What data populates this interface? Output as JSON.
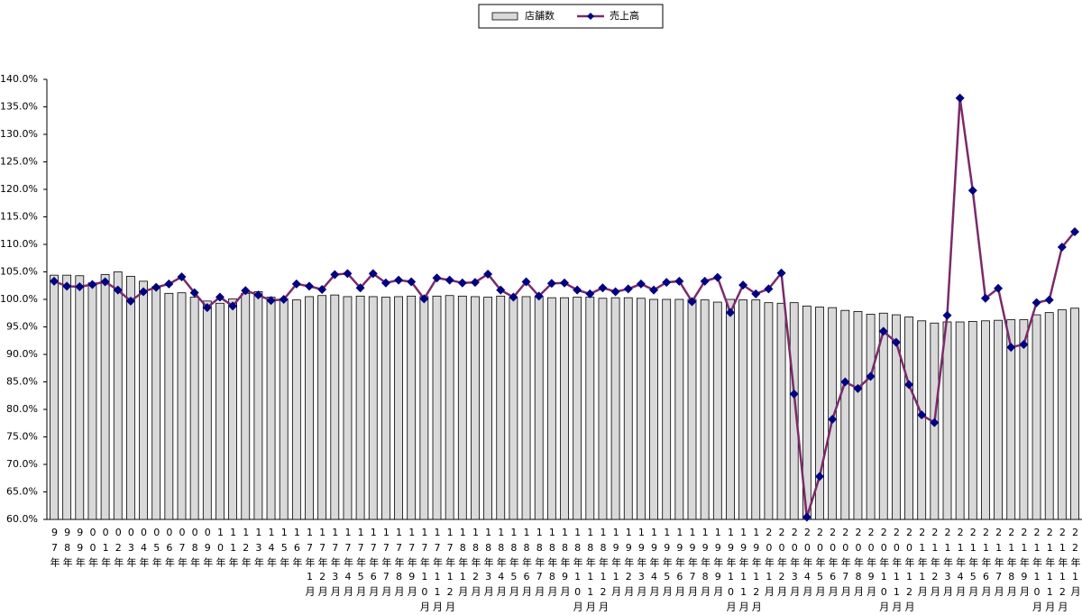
{
  "chart_data": {
    "type": "bar",
    "categories": [
      "97年",
      "98年",
      "99年",
      "00年",
      "01年",
      "02年",
      "03年",
      "04年",
      "05年",
      "06年",
      "07年",
      "08年",
      "09年",
      "10年",
      "11年",
      "12年",
      "13年",
      "14年",
      "15年",
      "16年",
      "17年1月",
      "17年2月",
      "17年3月",
      "17年4月",
      "17年5月",
      "17年6月",
      "17年7月",
      "17年8月",
      "17年9月",
      "17年10月",
      "17年11月",
      "17年12月",
      "18年1月",
      "18年2月",
      "18年3月",
      "18年4月",
      "18年5月",
      "18年6月",
      "18年7月",
      "18年8月",
      "18年9月",
      "18年10月",
      "18年11月",
      "18年12月",
      "19年1月",
      "19年2月",
      "19年3月",
      "19年4月",
      "19年5月",
      "19年6月",
      "19年7月",
      "19年8月",
      "19年9月",
      "19年10月",
      "19年11月",
      "19年12月",
      "20年1月",
      "20年2月",
      "20年3月",
      "20年4月",
      "20年5月",
      "20年6月",
      "20年7月",
      "20年8月",
      "20年9月",
      "20年10月",
      "20年11月",
      "20年12月",
      "21年1月",
      "21年2月",
      "21年3月",
      "21年4月",
      "21年5月",
      "21年6月",
      "21年7月",
      "21年8月",
      "21年9月",
      "21年10月",
      "21年11月",
      "21年12月",
      "22年1月"
    ],
    "series": [
      {
        "name": "店舗数",
        "type": "bar",
        "color": "#d9d9d9",
        "values": [
          104.4,
          104.4,
          104.3,
          103.0,
          104.5,
          105.0,
          104.2,
          103.3,
          102.3,
          101.1,
          101.2,
          100.4,
          99.7,
          99.3,
          100.1,
          101.1,
          101.4,
          100.4,
          100.1,
          99.9,
          100.5,
          100.7,
          100.8,
          100.5,
          100.6,
          100.5,
          100.4,
          100.5,
          100.6,
          100.5,
          100.6,
          100.7,
          100.6,
          100.5,
          100.4,
          100.6,
          100.3,
          100.5,
          100.5,
          100.3,
          100.3,
          100.4,
          100.4,
          100.2,
          100.3,
          100.3,
          100.2,
          100.0,
          100.0,
          100.0,
          100.0,
          99.9,
          99.5,
          100.0,
          99.9,
          99.9,
          99.4,
          99.3,
          99.4,
          98.8,
          98.6,
          98.5,
          98.0,
          97.8,
          97.3,
          97.5,
          97.2,
          96.8,
          96.1,
          95.7,
          95.9,
          95.9,
          96.0,
          96.1,
          96.2,
          96.3,
          96.3,
          97.2,
          97.6,
          98.1,
          98.4
        ]
      },
      {
        "name": "売上高",
        "type": "line",
        "color": "#7b2a6a",
        "marker_color": "#000080",
        "values": [
          103.3,
          102.4,
          102.3,
          102.7,
          103.2,
          101.7,
          99.7,
          101.4,
          102.2,
          102.8,
          104.1,
          101.2,
          98.5,
          100.4,
          98.8,
          101.6,
          100.8,
          99.8,
          100.0,
          102.8,
          102.4,
          101.8,
          104.5,
          104.7,
          102.1,
          104.7,
          103.0,
          103.5,
          103.2,
          100.1,
          103.9,
          103.5,
          103.0,
          103.1,
          104.6,
          101.7,
          100.4,
          103.2,
          100.6,
          102.9,
          103.0,
          101.7,
          101.0,
          102.1,
          101.4,
          101.9,
          102.8,
          101.7,
          103.1,
          103.3,
          99.6,
          103.3,
          104.0,
          97.6,
          102.6,
          101.0,
          101.9,
          104.8,
          82.8,
          60.4,
          67.8,
          78.2,
          85.0,
          83.8,
          86.0,
          94.2,
          92.2,
          84.5,
          79.0,
          77.6,
          97.1,
          136.6,
          119.8,
          100.2,
          102.0,
          91.3,
          91.8,
          99.4,
          99.9,
          109.5,
          112.3
        ]
      }
    ],
    "ylim": [
      60,
      140
    ],
    "yticks": [
      {
        "value": 60,
        "label": "60.0%"
      },
      {
        "value": 65,
        "label": "65.0%"
      },
      {
        "value": 70,
        "label": "70.0%"
      },
      {
        "value": 75,
        "label": "75.0%"
      },
      {
        "value": 80,
        "label": "80.0%"
      },
      {
        "value": 85,
        "label": "85.0%"
      },
      {
        "value": 90,
        "label": "90.0%"
      },
      {
        "value": 95,
        "label": "95.0%"
      },
      {
        "value": 100,
        "label": "100.0%"
      },
      {
        "value": 105,
        "label": "105.0%"
      },
      {
        "value": 110,
        "label": "110.0%"
      },
      {
        "value": 115,
        "label": "115.0%"
      },
      {
        "value": 120,
        "label": "120.0%"
      },
      {
        "value": 125,
        "label": "125.0%"
      },
      {
        "value": 130,
        "label": "130.0%"
      },
      {
        "value": 135,
        "label": "135.0%"
      },
      {
        "value": 140,
        "label": "140.0%"
      }
    ],
    "grid": false,
    "legend": "top"
  }
}
